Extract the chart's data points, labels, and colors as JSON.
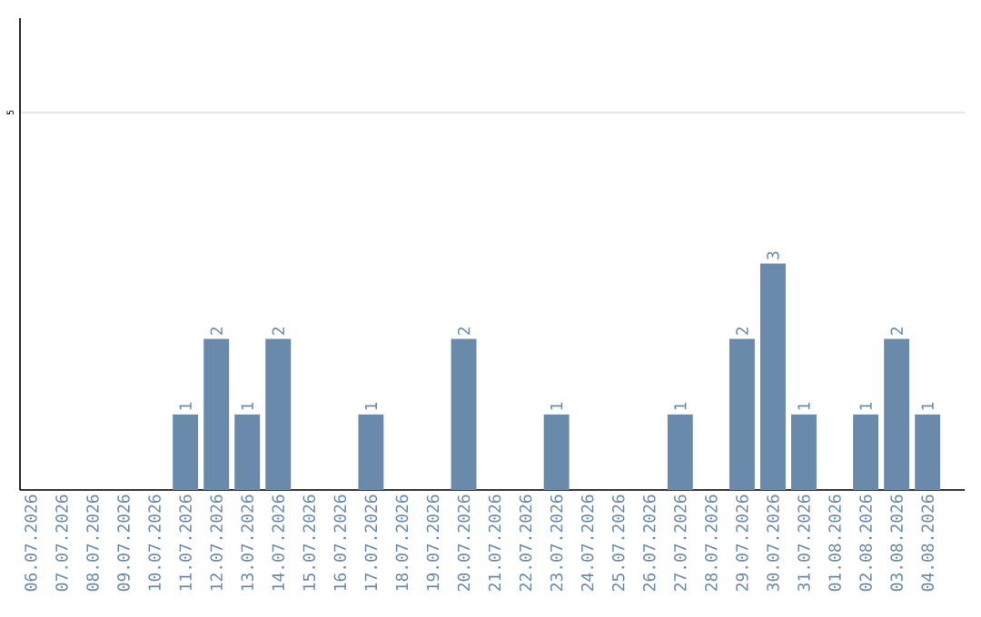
{
  "chart_data": {
    "type": "bar",
    "categories": [
      "06.07.2026",
      "07.07.2026",
      "08.07.2026",
      "09.07.2026",
      "10.07.2026",
      "11.07.2026",
      "12.07.2026",
      "13.07.2026",
      "14.07.2026",
      "15.07.2026",
      "16.07.2026",
      "17.07.2026",
      "18.07.2026",
      "19.07.2026",
      "20.07.2026",
      "21.07.2026",
      "22.07.2026",
      "23.07.2026",
      "24.07.2026",
      "25.07.2026",
      "26.07.2026",
      "27.07.2026",
      "28.07.2026",
      "29.07.2026",
      "30.07.2026",
      "31.07.2026",
      "01.08.2026",
      "02.08.2026",
      "03.08.2026",
      "04.08.2026"
    ],
    "values": [
      0,
      0,
      0,
      0,
      0,
      1,
      2,
      1,
      2,
      0,
      0,
      1,
      0,
      0,
      2,
      0,
      0,
      1,
      0,
      0,
      0,
      1,
      0,
      2,
      3,
      1,
      0,
      1,
      2,
      1
    ],
    "value_labels": [
      null,
      null,
      null,
      null,
      null,
      "1",
      "2",
      "1",
      "2",
      null,
      null,
      "1",
      null,
      null,
      "2",
      null,
      null,
      "1",
      null,
      null,
      null,
      "1",
      null,
      "2",
      "3",
      "1",
      null,
      "1",
      "2",
      "1"
    ],
    "color": "#6a8aab",
    "ylim": [
      0,
      6.25
    ],
    "yticks": [
      5
    ],
    "grid": "y"
  }
}
